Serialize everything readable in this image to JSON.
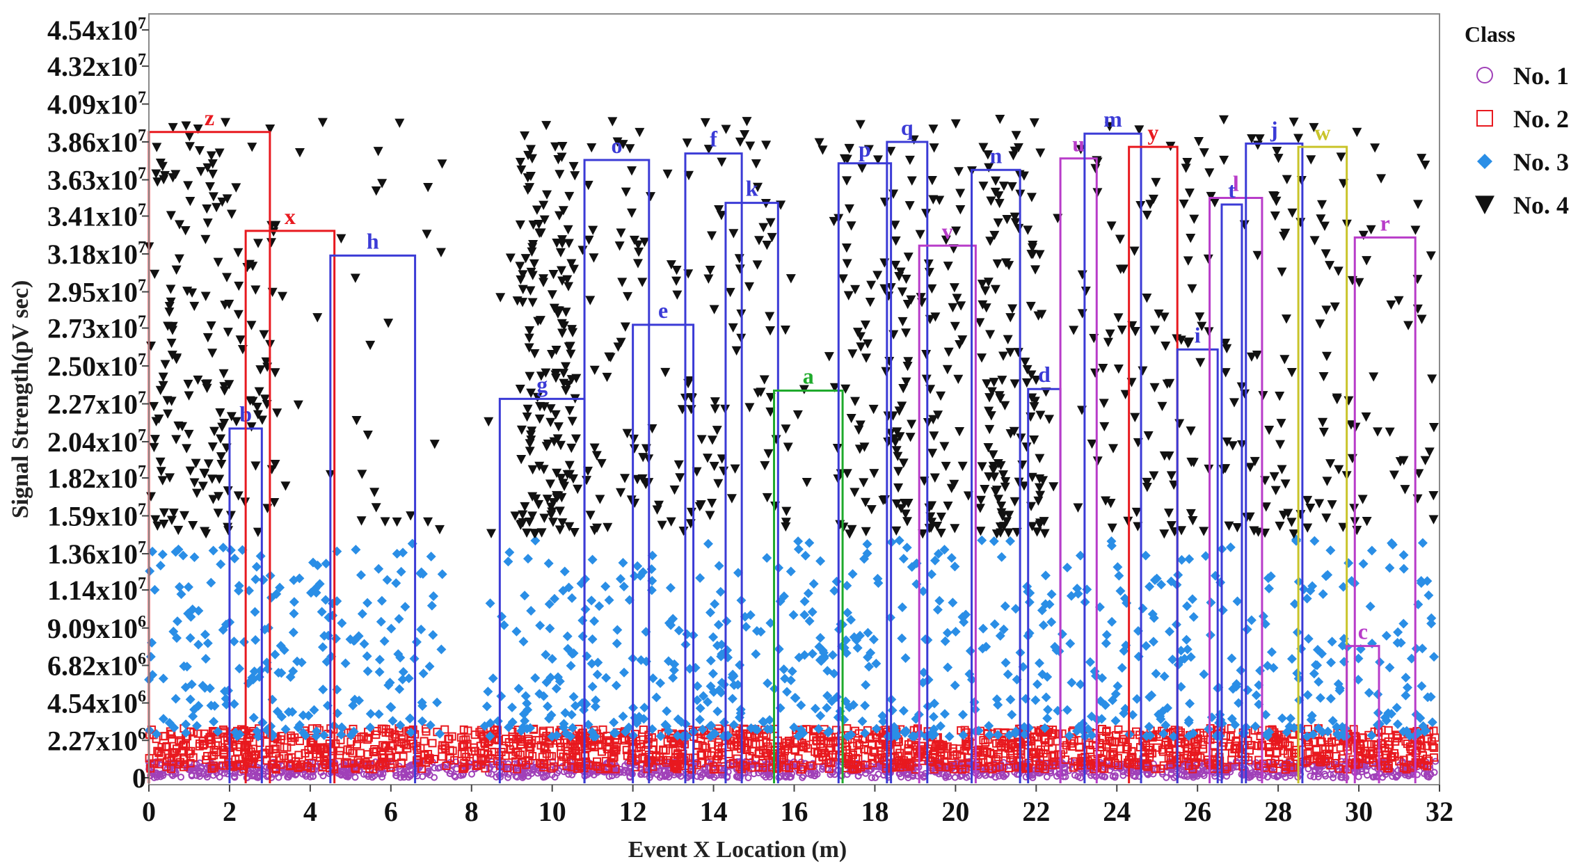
{
  "chart_data": {
    "type": "scatter",
    "title": "",
    "xlabel": "Event X Location (m)",
    "ylabel": "Signal Strength(pV sec)",
    "xlim": [
      0,
      32
    ],
    "ylim": [
      0,
      45400000
    ],
    "x_ticks": [
      {
        "value": 0,
        "label": "0"
      },
      {
        "value": 2,
        "label": "2"
      },
      {
        "value": 4,
        "label": "4"
      },
      {
        "value": 6,
        "label": "6"
      },
      {
        "value": 8,
        "label": "8"
      },
      {
        "value": 10,
        "label": "10"
      },
      {
        "value": 12,
        "label": "12"
      },
      {
        "value": 14,
        "label": "14"
      },
      {
        "value": 16,
        "label": "16"
      },
      {
        "value": 18,
        "label": "18"
      },
      {
        "value": 20,
        "label": "20"
      },
      {
        "value": 22,
        "label": "22"
      },
      {
        "value": 24,
        "label": "24"
      },
      {
        "value": 26,
        "label": "26"
      },
      {
        "value": 28,
        "label": "28"
      },
      {
        "value": 30,
        "label": "30"
      },
      {
        "value": 32,
        "label": "32"
      }
    ],
    "y_ticks": [
      {
        "value": 0,
        "base": "0",
        "exp": ""
      },
      {
        "value": 2270000,
        "base": "2.27x10",
        "exp": "6"
      },
      {
        "value": 4540000,
        "base": "4.54x10",
        "exp": "6"
      },
      {
        "value": 6820000,
        "base": "6.82x10",
        "exp": "6"
      },
      {
        "value": 9090000,
        "base": "9.09x10",
        "exp": "6"
      },
      {
        "value": 11400000,
        "base": "1.14x10",
        "exp": "7"
      },
      {
        "value": 13600000,
        "base": "1.36x10",
        "exp": "7"
      },
      {
        "value": 15900000,
        "base": "1.59x10",
        "exp": "7"
      },
      {
        "value": 18200000,
        "base": "1.82x10",
        "exp": "7"
      },
      {
        "value": 20400000,
        "base": "2.04x10",
        "exp": "7"
      },
      {
        "value": 22700000,
        "base": "2.27x10",
        "exp": "7"
      },
      {
        "value": 25000000,
        "base": "2.50x10",
        "exp": "7"
      },
      {
        "value": 27300000,
        "base": "2.73x10",
        "exp": "7"
      },
      {
        "value": 29500000,
        "base": "2.95x10",
        "exp": "7"
      },
      {
        "value": 31800000,
        "base": "3.18x10",
        "exp": "7"
      },
      {
        "value": 34100000,
        "base": "3.41x10",
        "exp": "7"
      },
      {
        "value": 36300000,
        "base": "3.63x10",
        "exp": "7"
      },
      {
        "value": 38600000,
        "base": "3.86x10",
        "exp": "7"
      },
      {
        "value": 40900000,
        "base": "4.09x10",
        "exp": "7"
      },
      {
        "value": 43200000,
        "base": "4.32x10",
        "exp": "7"
      },
      {
        "value": 45400000,
        "base": "4.54x10",
        "exp": "7"
      }
    ],
    "legend": {
      "title": "Class",
      "placement": "right",
      "entries": [
        {
          "label": "No. 1",
          "marker": "circle",
          "color": "#a040b8"
        },
        {
          "label": "No. 2",
          "marker": "square",
          "color": "#e8191f"
        },
        {
          "label": "No. 3",
          "marker": "diamond",
          "color": "#2a8ee6"
        },
        {
          "label": "No. 4",
          "marker": "triangle-down",
          "color": "#111111"
        }
      ]
    },
    "classes": {
      "No. 1": {
        "y_range": [
          0,
          1000000
        ],
        "dense": true
      },
      "No. 2": {
        "y_range": [
          500000,
          3000000
        ],
        "dense": true
      },
      "No. 3": {
        "y_range": [
          2500000,
          14500000
        ]
      },
      "No. 4": {
        "y_range": [
          14800000,
          40000000
        ]
      }
    },
    "boxes": [
      {
        "label": "z",
        "x0": 0,
        "x1": 3.0,
        "y": 39200000,
        "color": "#e8191f"
      },
      {
        "label": "b",
        "x0": 2.0,
        "x1": 2.8,
        "y": 21200000,
        "color": "#3b3bd6"
      },
      {
        "label": "x",
        "x0": 2.4,
        "x1": 4.6,
        "y": 33200000,
        "color": "#e8191f"
      },
      {
        "label": "h",
        "x0": 4.5,
        "x1": 6.6,
        "y": 31700000,
        "color": "#3b3bd6"
      },
      {
        "label": "g",
        "x0": 8.7,
        "x1": 10.8,
        "y": 23000000,
        "color": "#3b3bd6"
      },
      {
        "label": "o",
        "x0": 10.8,
        "x1": 12.4,
        "y": 37500000,
        "color": "#3b3bd6"
      },
      {
        "label": "e",
        "x0": 12.0,
        "x1": 13.5,
        "y": 27500000,
        "color": "#3b3bd6"
      },
      {
        "label": "f",
        "x0": 13.3,
        "x1": 14.7,
        "y": 37900000,
        "color": "#3b3bd6"
      },
      {
        "label": "k",
        "x0": 14.3,
        "x1": 15.6,
        "y": 34900000,
        "color": "#3b3bd6"
      },
      {
        "label": "a",
        "x0": 15.5,
        "x1": 17.2,
        "y": 23500000,
        "color": "#1faa2c"
      },
      {
        "label": "p",
        "x0": 17.1,
        "x1": 18.4,
        "y": 37300000,
        "color": "#3b3bd6"
      },
      {
        "label": "q",
        "x0": 18.3,
        "x1": 19.3,
        "y": 38600000,
        "color": "#3b3bd6"
      },
      {
        "label": "v",
        "x0": 19.1,
        "x1": 20.5,
        "y": 32300000,
        "color": "#b83cc9"
      },
      {
        "label": "n",
        "x0": 20.4,
        "x1": 21.6,
        "y": 36900000,
        "color": "#3b3bd6"
      },
      {
        "label": "d",
        "x0": 21.8,
        "x1": 22.6,
        "y": 23600000,
        "color": "#3b3bd6"
      },
      {
        "label": "u",
        "x0": 22.6,
        "x1": 23.5,
        "y": 37600000,
        "color": "#b83cc9"
      },
      {
        "label": "m",
        "x0": 23.2,
        "x1": 24.6,
        "y": 39100000,
        "color": "#3b3bd6"
      },
      {
        "label": "y",
        "x0": 24.3,
        "x1": 25.5,
        "y": 38300000,
        "color": "#e8191f"
      },
      {
        "label": "i",
        "x0": 25.5,
        "x1": 26.5,
        "y": 26000000,
        "color": "#3b3bd6"
      },
      {
        "label": "l",
        "x0": 26.3,
        "x1": 27.6,
        "y": 35200000,
        "color": "#b83cc9"
      },
      {
        "label": "t",
        "x0": 26.6,
        "x1": 27.1,
        "y": 34800000,
        "color": "#3b3bd6"
      },
      {
        "label": "j",
        "x0": 27.2,
        "x1": 28.6,
        "y": 38500000,
        "color": "#3b3bd6"
      },
      {
        "label": "w",
        "x0": 28.5,
        "x1": 29.7,
        "y": 38300000,
        "color": "#c9c42a"
      },
      {
        "label": "c",
        "x0": 29.7,
        "x1": 30.5,
        "y": 8000000,
        "color": "#b83cc9"
      },
      {
        "label": "r",
        "x0": 29.9,
        "x1": 31.4,
        "y": 32800000,
        "color": "#b83cc9"
      }
    ]
  }
}
